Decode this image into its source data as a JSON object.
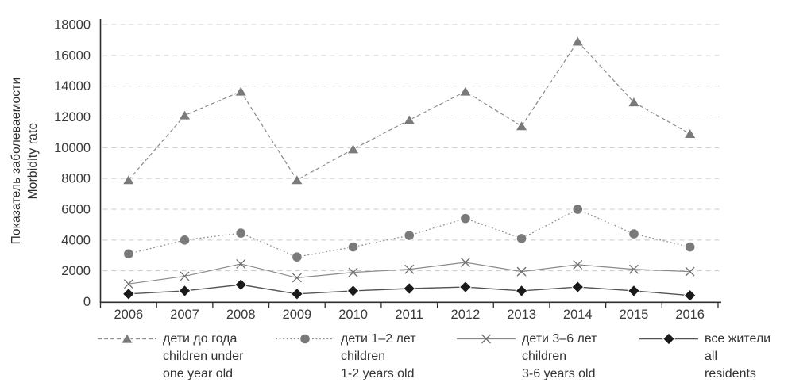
{
  "chart_data": {
    "type": "line",
    "title": "",
    "ylabel_ru": "Показатель заболеваемости",
    "ylabel_en": "Morbidity rate",
    "xlabel": "",
    "categories": [
      "2006",
      "2007",
      "2008",
      "2009",
      "2010",
      "2011",
      "2012",
      "2013",
      "2014",
      "2015",
      "2016"
    ],
    "y_ticks": [
      0,
      2000,
      4000,
      6000,
      8000,
      10000,
      12000,
      14000,
      16000,
      18000
    ],
    "ylim": [
      0,
      18000
    ],
    "grid": "horizontal-dashed",
    "legend_position": "bottom",
    "series": [
      {
        "name": "дети до года / children under one year old",
        "legend": {
          "line1": "дети до года",
          "line2": "children under",
          "line3": "one year old"
        },
        "marker": "triangle",
        "line_style": "dashed",
        "marker_color": "#7a7a7a",
        "line_color": "#8a8a8a",
        "values": [
          7900,
          12100,
          13650,
          7900,
          9900,
          11800,
          13650,
          11400,
          16900,
          12950,
          10900
        ]
      },
      {
        "name": "дети 1–2 лет / children 1-2 years old",
        "legend": {
          "line1": "дети 1–2 лет",
          "line2": "children",
          "line3": "1-2 years old"
        },
        "marker": "circle",
        "line_style": "dotted",
        "marker_color": "#7a7a7a",
        "line_color": "#8a8a8a",
        "values": [
          3100,
          4000,
          4450,
          2900,
          3550,
          4300,
          5400,
          4100,
          6000,
          4400,
          3550
        ]
      },
      {
        "name": "дети 3–6 лет / children 3-6 years old",
        "legend": {
          "line1": "дети 3–6 лет",
          "line2": "children",
          "line3": "3-6 years old"
        },
        "marker": "x",
        "line_style": "solid",
        "marker_color": "#6e6e6e",
        "line_color": "#8a8a8a",
        "values": [
          1150,
          1650,
          2450,
          1550,
          1900,
          2100,
          2550,
          1950,
          2400,
          2100,
          1950
        ]
      },
      {
        "name": "все жители / all residents",
        "legend": {
          "line1": "все жители",
          "line2": "all",
          "line3": "residents"
        },
        "marker": "diamond",
        "line_style": "solid",
        "marker_color": "#1a1a1a",
        "line_color": "#555555",
        "values": [
          500,
          700,
          1100,
          500,
          700,
          850,
          950,
          700,
          950,
          700,
          400
        ]
      }
    ],
    "style": {
      "grid_color": "#c8c8c8",
      "axis_color": "#2e2e2e",
      "tick_label_color": "#3a3a3a",
      "background": "#ffffff"
    }
  }
}
